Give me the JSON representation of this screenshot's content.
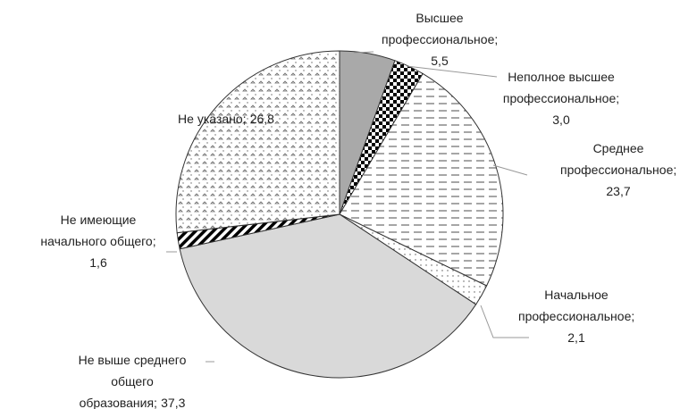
{
  "chart_data": {
    "type": "pie",
    "categories": [
      "Высшее профессиональное;",
      "Неполное высшее профессиональное;",
      "Среднее профессиональное;",
      "Начальное профессиональное;",
      "Не выше среднего общего образования;",
      "Не имеющие начального общего;",
      "Не указано;"
    ],
    "values": [
      5.5,
      3.0,
      23.7,
      2.1,
      37.3,
      1.6,
      26.8
    ],
    "value_labels": [
      "5,5",
      "3,0",
      "23,7",
      "2,1",
      "37,3",
      "1,6",
      "26,8"
    ]
  }
}
